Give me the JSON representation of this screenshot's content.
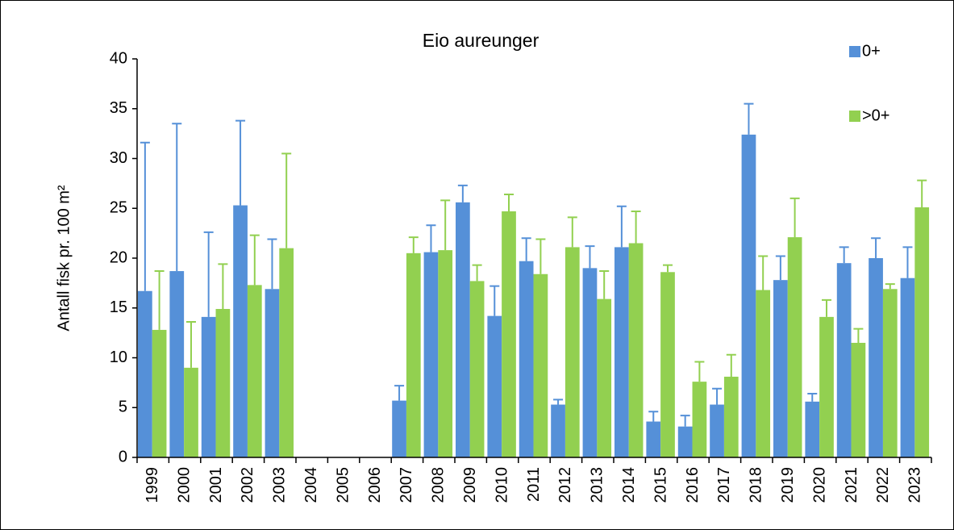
{
  "chart_data": {
    "type": "bar",
    "title": "Eio aureunger",
    "y_label": "Antall fisk pr. 100 m²",
    "categories": [
      "1999",
      "2000",
      "2001",
      "2002",
      "2003",
      "2004",
      "2005",
      "2006",
      "2007",
      "2008",
      "2009",
      "2010",
      "2011",
      "2012",
      "2013",
      "2014",
      "2015",
      "2016",
      "2017",
      "2018",
      "2019",
      "2020",
      "2021",
      "2022",
      "2023"
    ],
    "series": [
      {
        "name": "0+",
        "color": "#5590d8",
        "values": [
          16.7,
          18.7,
          14.1,
          25.3,
          16.9,
          null,
          null,
          null,
          5.7,
          20.6,
          25.6,
          14.2,
          19.7,
          5.3,
          19.0,
          21.1,
          3.6,
          3.1,
          5.3,
          32.4,
          17.8,
          5.6,
          19.5,
          20.0,
          18.0
        ],
        "errors": [
          14.9,
          14.8,
          8.5,
          8.5,
          5.0,
          null,
          null,
          null,
          1.5,
          2.7,
          1.7,
          3.0,
          2.3,
          0.5,
          2.2,
          4.1,
          1.0,
          1.1,
          1.6,
          3.1,
          2.4,
          0.8,
          1.6,
          2.0,
          3.1
        ]
      },
      {
        "name": ">0+",
        "color": "#92d050",
        "values": [
          12.8,
          9.0,
          14.9,
          17.3,
          21.0,
          null,
          null,
          null,
          20.5,
          20.8,
          17.7,
          24.7,
          18.4,
          21.1,
          15.9,
          21.5,
          18.6,
          7.6,
          8.1,
          16.8,
          22.1,
          14.1,
          11.5,
          16.9,
          25.1
        ],
        "errors": [
          5.9,
          4.6,
          4.5,
          5.0,
          9.5,
          null,
          null,
          null,
          1.6,
          5.0,
          1.6,
          1.7,
          3.5,
          3.0,
          2.8,
          3.2,
          0.7,
          2.0,
          2.2,
          3.4,
          3.9,
          1.7,
          1.4,
          0.5,
          2.7
        ]
      }
    ],
    "ylim": [
      0,
      40
    ],
    "yticks": [
      0,
      5,
      10,
      15,
      20,
      25,
      30,
      35,
      40
    ],
    "legend": "top-right"
  }
}
